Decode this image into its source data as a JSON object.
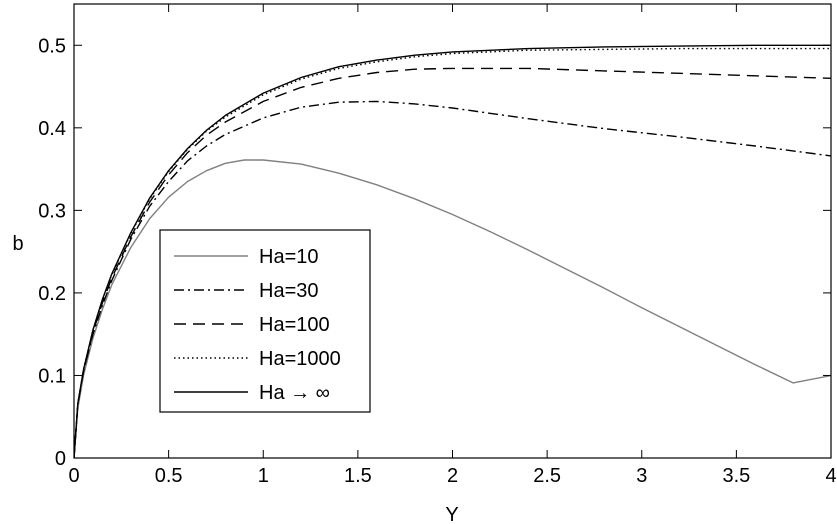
{
  "chart_data": {
    "type": "line",
    "xlabel": "Y",
    "ylabel": "b",
    "xlim": [
      0,
      4
    ],
    "ylim": [
      0,
      0.55
    ],
    "xticks": [
      "0",
      "0.5",
      "1",
      "1.5",
      "2",
      "2.5",
      "3",
      "3.5",
      "4"
    ],
    "yticks": [
      "0",
      "0.1",
      "0.2",
      "0.3",
      "0.4",
      "0.5"
    ],
    "grid": false,
    "legend_position": "lower-left",
    "series": [
      {
        "name": "Ha=10",
        "style": "solid",
        "color": "#808080",
        "x": [
          0,
          0.02,
          0.05,
          0.1,
          0.15,
          0.2,
          0.3,
          0.4,
          0.5,
          0.6,
          0.7,
          0.8,
          0.9,
          1.0,
          1.2,
          1.4,
          1.6,
          1.8,
          2.0,
          2.2,
          2.4,
          2.6,
          2.8,
          3.0,
          3.2,
          3.4,
          3.6,
          3.8,
          4.0
        ],
        "y": [
          0,
          0.06,
          0.1,
          0.145,
          0.18,
          0.21,
          0.255,
          0.29,
          0.316,
          0.335,
          0.348,
          0.357,
          0.361,
          0.361,
          0.356,
          0.345,
          0.331,
          0.314,
          0.295,
          0.274,
          0.252,
          0.229,
          0.206,
          0.182,
          0.159,
          0.136,
          0.113,
          0.091,
          0.1
        ]
      },
      {
        "name": "Ha=30",
        "style": "dashdot",
        "color": "#000000",
        "x": [
          0,
          0.02,
          0.05,
          0.1,
          0.15,
          0.2,
          0.3,
          0.4,
          0.5,
          0.6,
          0.7,
          0.8,
          1.0,
          1.2,
          1.4,
          1.6,
          1.8,
          2.0,
          2.4,
          2.8,
          3.2,
          3.6,
          4.0
        ],
        "y": [
          0,
          0.065,
          0.105,
          0.15,
          0.185,
          0.215,
          0.265,
          0.305,
          0.335,
          0.36,
          0.378,
          0.392,
          0.412,
          0.425,
          0.431,
          0.432,
          0.429,
          0.424,
          0.411,
          0.399,
          0.389,
          0.378,
          0.366
        ]
      },
      {
        "name": "Ha=100",
        "style": "dashed",
        "color": "#000000",
        "x": [
          0,
          0.02,
          0.05,
          0.1,
          0.15,
          0.2,
          0.3,
          0.4,
          0.5,
          0.6,
          0.7,
          0.8,
          1.0,
          1.2,
          1.4,
          1.6,
          1.8,
          2.0,
          2.4,
          2.8,
          3.2,
          3.6,
          4.0
        ],
        "y": [
          0,
          0.065,
          0.105,
          0.152,
          0.188,
          0.218,
          0.268,
          0.31,
          0.343,
          0.37,
          0.391,
          0.407,
          0.432,
          0.449,
          0.46,
          0.467,
          0.471,
          0.472,
          0.472,
          0.469,
          0.466,
          0.463,
          0.46
        ]
      },
      {
        "name": "Ha=1000",
        "style": "dotted",
        "color": "#000000",
        "x": [
          0,
          0.02,
          0.05,
          0.1,
          0.15,
          0.2,
          0.3,
          0.4,
          0.5,
          0.6,
          0.7,
          0.8,
          1.0,
          1.2,
          1.4,
          1.6,
          1.8,
          2.0,
          2.4,
          2.8,
          3.2,
          3.6,
          4.0
        ],
        "y": [
          0,
          0.066,
          0.107,
          0.155,
          0.192,
          0.222,
          0.272,
          0.314,
          0.347,
          0.374,
          0.396,
          0.413,
          0.44,
          0.459,
          0.472,
          0.48,
          0.486,
          0.49,
          0.494,
          0.495,
          0.496,
          0.496,
          0.496
        ]
      },
      {
        "name": "Ha → ∞",
        "style": "solid",
        "color": "#000000",
        "x": [
          0,
          0.02,
          0.05,
          0.1,
          0.15,
          0.2,
          0.3,
          0.4,
          0.5,
          0.6,
          0.7,
          0.8,
          1.0,
          1.2,
          1.4,
          1.6,
          1.8,
          2.0,
          2.4,
          2.8,
          3.2,
          3.6,
          4.0
        ],
        "y": [
          0,
          0.066,
          0.107,
          0.155,
          0.192,
          0.223,
          0.273,
          0.315,
          0.348,
          0.375,
          0.397,
          0.415,
          0.442,
          0.461,
          0.474,
          0.482,
          0.488,
          0.492,
          0.496,
          0.498,
          0.499,
          0.5,
          0.5
        ]
      }
    ]
  }
}
